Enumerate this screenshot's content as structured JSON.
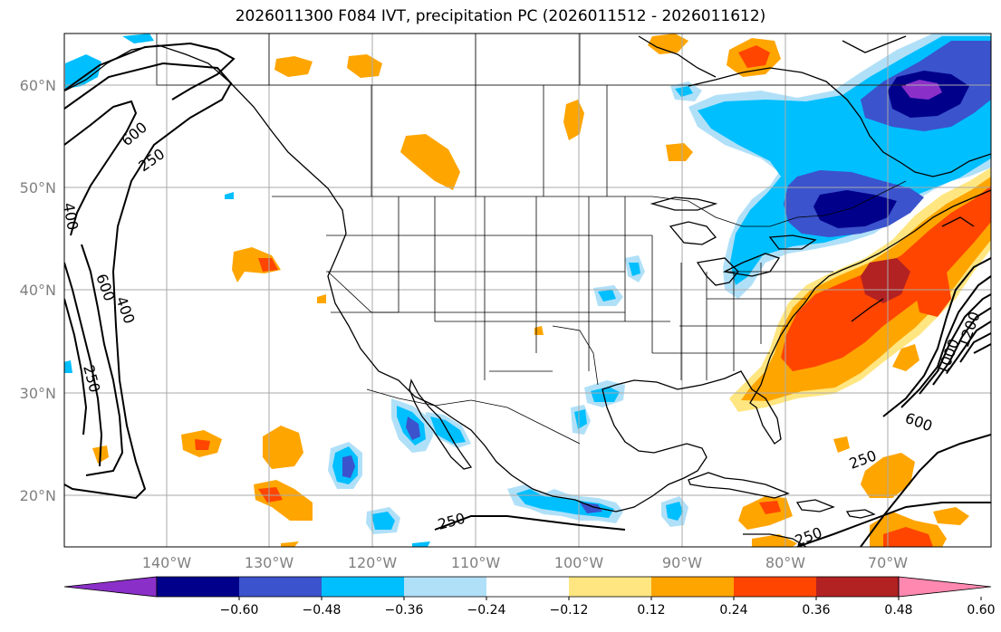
{
  "title": "2026011300 F084 IVT, precipitation PC (2026011512 - 2026011612)",
  "latitude_labels": [
    "60°N",
    "50°N",
    "40°N",
    "30°N",
    "20°N"
  ],
  "longitude_labels": [
    "140°W",
    "130°W",
    "120°W",
    "110°W",
    "100°W",
    "90°W",
    "80°W",
    "70°W"
  ],
  "contour_labels": {
    "a": "600",
    "b": "250",
    "c": "400",
    "d": "600",
    "e": "400",
    "f": "250",
    "g": "250",
    "h": "250",
    "i": "250",
    "j": "600",
    "k": "1000",
    "l": "1200"
  },
  "colorbar": {
    "ticks": [
      "−0.60",
      "−0.48",
      "−0.36",
      "−0.24",
      "−0.12",
      "0.12",
      "0.24",
      "0.36",
      "0.48",
      "0.60"
    ],
    "colors": [
      "#8b2fc9",
      "#00008b",
      "#3b53cc",
      "#00bfff",
      "#b0e0f8",
      "#ffffff",
      "#ffe680",
      "#ffa500",
      "#ff4500",
      "#b22222",
      "#ff88b0"
    ]
  },
  "colors": {
    "purple": "#8b2fc9",
    "navy": "#00008b",
    "blue": "#3b53cc",
    "cyan": "#00bfff",
    "lightblue": "#b0e0f8",
    "yellow": "#ffe680",
    "orange": "#ffa500",
    "redorange": "#ff4500",
    "darkred": "#b22222"
  }
}
